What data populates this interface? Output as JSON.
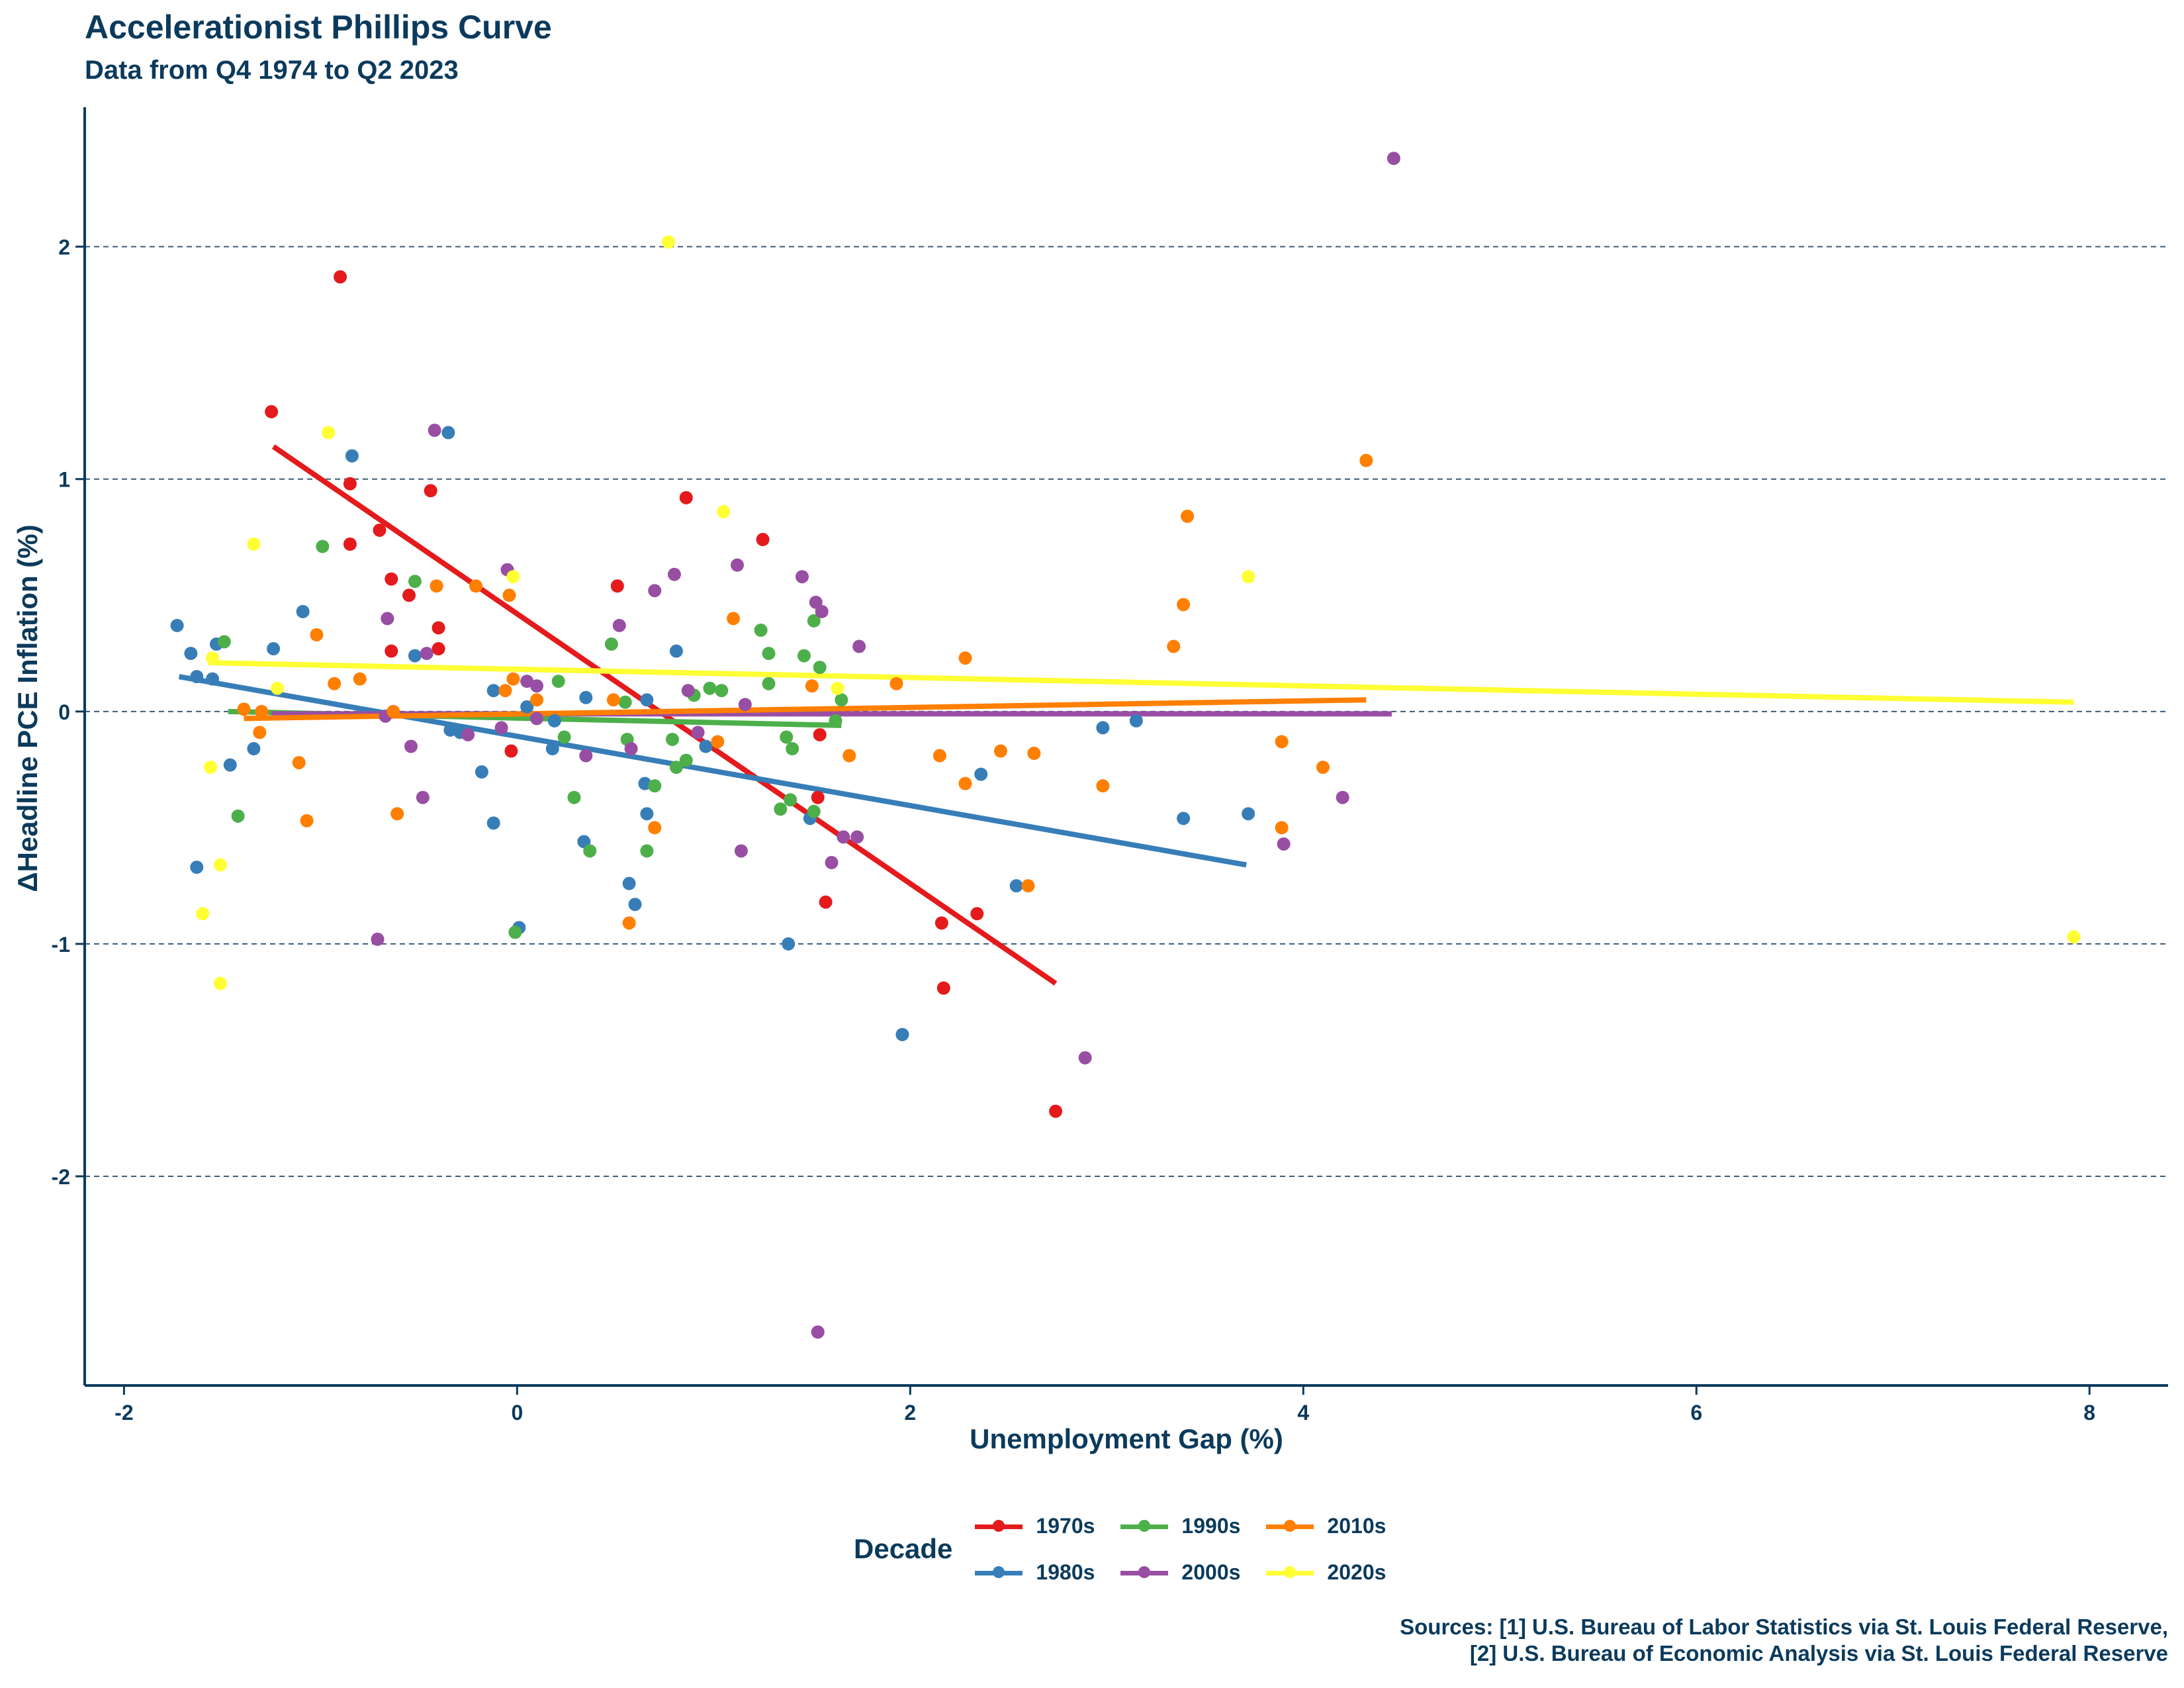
{
  "chart_data": {
    "type": "scatter",
    "title": "Accelerationist Phillips Curve",
    "subtitle": "Data from Q4 1974 to Q2 2023",
    "xlabel": "Unemployment Gap (%)",
    "ylabel": "ΔHeadline PCE Inflation (%)",
    "xlim": [
      -2.2,
      8.4
    ],
    "ylim": [
      -2.9,
      2.6
    ],
    "xticks": [
      -2,
      0,
      2,
      4,
      6,
      8
    ],
    "yticks": [
      -2,
      -1,
      0,
      1,
      2
    ],
    "xtick_labels": [
      "-2",
      "0",
      "2",
      "4",
      "6",
      "8"
    ],
    "ytick_labels": [
      "-2",
      "-1",
      "0",
      "1",
      "2"
    ],
    "grid": "horizontal dashed",
    "legend_title": "Decade",
    "legend_position": "bottom",
    "caption": [
      "Sources: [1] U.S. Bureau of Labor Statistics via St. Louis Federal Reserve,",
      "[2] U.S. Bureau of Economic Analysis via St. Louis Federal Reserve"
    ],
    "series": [
      {
        "name": "1970s",
        "color": "#e41a1c",
        "trend": [
          [
            -1.24,
            1.14
          ],
          [
            2.74,
            -1.17
          ]
        ],
        "points": [
          [
            -1.25,
            1.29
          ],
          [
            -0.9,
            1.87
          ],
          [
            -0.85,
            0.98
          ],
          [
            -0.85,
            0.72
          ],
          [
            -0.7,
            0.78
          ],
          [
            -0.64,
            0.57
          ],
          [
            -0.55,
            0.5
          ],
          [
            -0.64,
            0.26
          ],
          [
            -0.44,
            0.95
          ],
          [
            -0.4,
            0.36
          ],
          [
            -0.4,
            0.27
          ],
          [
            -0.03,
            -0.17
          ],
          [
            0.51,
            0.54
          ],
          [
            0.86,
            0.92
          ],
          [
            1.25,
            0.74
          ],
          [
            1.53,
            -0.37
          ],
          [
            1.54,
            -0.1
          ],
          [
            1.57,
            -0.82
          ],
          [
            2.16,
            -0.91
          ],
          [
            2.17,
            -1.19
          ],
          [
            2.34,
            -0.87
          ],
          [
            2.74,
            -1.72
          ]
        ]
      },
      {
        "name": "1980s",
        "color": "#377eb8",
        "trend": [
          [
            -1.72,
            0.15
          ],
          [
            3.71,
            -0.66
          ]
        ],
        "points": [
          [
            -1.73,
            0.37
          ],
          [
            -1.66,
            0.25
          ],
          [
            -1.63,
            0.15
          ],
          [
            -1.55,
            0.14
          ],
          [
            -1.53,
            0.29
          ],
          [
            -1.46,
            -0.23
          ],
          [
            -1.63,
            -0.67
          ],
          [
            -1.34,
            -0.16
          ],
          [
            -1.24,
            0.27
          ],
          [
            -1.09,
            0.43
          ],
          [
            -0.84,
            1.1
          ],
          [
            -0.35,
            1.2
          ],
          [
            -0.52,
            0.24
          ],
          [
            -0.34,
            -0.08
          ],
          [
            -0.29,
            -0.09
          ],
          [
            -0.18,
            -0.26
          ],
          [
            -0.12,
            0.09
          ],
          [
            -0.12,
            -0.48
          ],
          [
            0.05,
            0.02
          ],
          [
            0.18,
            -0.16
          ],
          [
            0.19,
            -0.04
          ],
          [
            0.34,
            -0.56
          ],
          [
            0.35,
            0.06
          ],
          [
            0.57,
            -0.74
          ],
          [
            0.6,
            -0.83
          ],
          [
            0.65,
            -0.31
          ],
          [
            0.66,
            -0.44
          ],
          [
            0.81,
            0.26
          ],
          [
            0.96,
            -0.15
          ],
          [
            1.38,
            -1.0
          ],
          [
            1.49,
            -0.46
          ],
          [
            1.96,
            -1.39
          ],
          [
            2.36,
            -0.27
          ],
          [
            2.54,
            -0.75
          ],
          [
            2.98,
            -0.07
          ],
          [
            3.15,
            -0.04
          ],
          [
            3.39,
            -0.46
          ],
          [
            3.72,
            -0.44
          ],
          [
            0.01,
            -0.93
          ],
          [
            0.66,
            0.05
          ]
        ]
      },
      {
        "name": "1990s",
        "color": "#4daf4a",
        "trend": [
          [
            -1.47,
            0.0
          ],
          [
            1.65,
            -0.06
          ]
        ],
        "points": [
          [
            -1.49,
            0.3
          ],
          [
            -1.42,
            -0.45
          ],
          [
            -0.99,
            0.71
          ],
          [
            -0.52,
            0.56
          ],
          [
            -0.01,
            -0.95
          ],
          [
            0.21,
            0.13
          ],
          [
            0.24,
            -0.11
          ],
          [
            0.29,
            -0.37
          ],
          [
            0.37,
            -0.6
          ],
          [
            0.48,
            0.29
          ],
          [
            0.56,
            -0.12
          ],
          [
            0.66,
            -0.6
          ],
          [
            0.7,
            -0.32
          ],
          [
            0.79,
            -0.12
          ],
          [
            0.81,
            -0.24
          ],
          [
            0.86,
            -0.21
          ],
          [
            0.9,
            0.07
          ],
          [
            0.98,
            0.1
          ],
          [
            1.04,
            0.09
          ],
          [
            1.24,
            0.35
          ],
          [
            1.28,
            0.25
          ],
          [
            1.34,
            -0.42
          ],
          [
            1.37,
            -0.11
          ],
          [
            1.39,
            -0.38
          ],
          [
            1.4,
            -0.16
          ],
          [
            1.46,
            0.24
          ],
          [
            1.51,
            0.39
          ],
          [
            1.51,
            -0.43
          ],
          [
            1.54,
            0.19
          ],
          [
            1.62,
            -0.04
          ],
          [
            1.65,
            0.05
          ],
          [
            1.28,
            0.12
          ],
          [
            0.55,
            0.04
          ]
        ]
      },
      {
        "name": "2000s",
        "color": "#984ea3",
        "trend": [
          [
            -1.25,
            -0.01
          ],
          [
            4.45,
            -0.01
          ]
        ],
        "points": [
          [
            -0.71,
            -0.98
          ],
          [
            -0.67,
            -0.02
          ],
          [
            -0.66,
            0.4
          ],
          [
            -0.54,
            -0.15
          ],
          [
            -0.48,
            -0.37
          ],
          [
            -0.46,
            0.25
          ],
          [
            -0.42,
            1.21
          ],
          [
            -0.25,
            -0.1
          ],
          [
            -0.08,
            -0.07
          ],
          [
            -0.05,
            0.61
          ],
          [
            0.05,
            0.13
          ],
          [
            0.1,
            0.11
          ],
          [
            0.1,
            -0.03
          ],
          [
            0.35,
            -0.19
          ],
          [
            0.52,
            0.37
          ],
          [
            0.58,
            -0.16
          ],
          [
            0.7,
            0.52
          ],
          [
            0.8,
            0.59
          ],
          [
            0.87,
            0.09
          ],
          [
            0.92,
            -0.09
          ],
          [
            1.12,
            0.63
          ],
          [
            1.14,
            -0.6
          ],
          [
            1.16,
            0.03
          ],
          [
            1.45,
            0.58
          ],
          [
            1.52,
            0.47
          ],
          [
            1.55,
            0.43
          ],
          [
            1.6,
            -0.65
          ],
          [
            1.66,
            -0.54
          ],
          [
            1.73,
            -0.54
          ],
          [
            1.74,
            0.28
          ],
          [
            1.53,
            -2.67
          ],
          [
            2.89,
            -1.49
          ],
          [
            3.9,
            -0.57
          ],
          [
            4.2,
            -0.37
          ],
          [
            4.46,
            2.38
          ]
        ]
      },
      {
        "name": "2010s",
        "color": "#ff7f00",
        "trend": [
          [
            -1.39,
            -0.03
          ],
          [
            4.32,
            0.05
          ]
        ],
        "points": [
          [
            -1.39,
            0.01
          ],
          [
            -1.31,
            -0.09
          ],
          [
            -1.3,
            0.0
          ],
          [
            -1.11,
            -0.22
          ],
          [
            -1.07,
            -0.47
          ],
          [
            -1.02,
            0.33
          ],
          [
            -0.93,
            0.12
          ],
          [
            -0.8,
            0.14
          ],
          [
            -0.63,
            0.0
          ],
          [
            -0.61,
            -0.44
          ],
          [
            -0.41,
            0.54
          ],
          [
            -0.21,
            0.54
          ],
          [
            -0.06,
            0.09
          ],
          [
            -0.04,
            0.5
          ],
          [
            -0.02,
            0.14
          ],
          [
            0.1,
            0.05
          ],
          [
            0.49,
            0.05
          ],
          [
            0.57,
            -0.91
          ],
          [
            0.7,
            -0.5
          ],
          [
            1.02,
            -0.13
          ],
          [
            1.1,
            0.4
          ],
          [
            1.5,
            0.11
          ],
          [
            1.69,
            -0.19
          ],
          [
            1.93,
            0.12
          ],
          [
            2.15,
            -0.19
          ],
          [
            2.28,
            0.23
          ],
          [
            2.28,
            -0.31
          ],
          [
            2.46,
            -0.17
          ],
          [
            2.6,
            -0.75
          ],
          [
            2.63,
            -0.18
          ],
          [
            2.98,
            -0.32
          ],
          [
            3.34,
            0.28
          ],
          [
            3.39,
            0.46
          ],
          [
            3.41,
            0.84
          ],
          [
            3.89,
            -0.13
          ],
          [
            3.89,
            -0.5
          ],
          [
            4.1,
            -0.24
          ],
          [
            4.32,
            1.08
          ]
        ]
      },
      {
        "name": "2020s",
        "color": "#ffff33",
        "trend": [
          [
            -1.57,
            0.21
          ],
          [
            7.92,
            0.04
          ]
        ],
        "points": [
          [
            -1.6,
            -0.87
          ],
          [
            -1.56,
            -0.24
          ],
          [
            -1.55,
            0.23
          ],
          [
            -1.51,
            -0.66
          ],
          [
            -1.51,
            -1.17
          ],
          [
            -1.34,
            0.72
          ],
          [
            -0.96,
            1.2
          ],
          [
            -0.02,
            0.58
          ],
          [
            0.77,
            2.02
          ],
          [
            1.05,
            0.86
          ],
          [
            3.72,
            0.58
          ],
          [
            7.92,
            -0.97
          ],
          [
            1.63,
            0.1
          ],
          [
            -1.22,
            0.1
          ]
        ]
      }
    ]
  }
}
